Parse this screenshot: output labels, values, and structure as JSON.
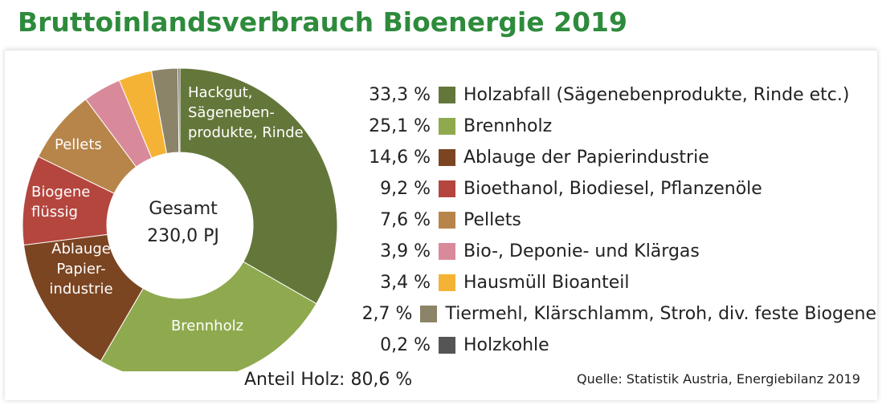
{
  "chart_data": {
    "type": "pie",
    "title": "Bruttoinlandsverbrauch Bioenergie 2019",
    "donut": true,
    "center_label": {
      "line1": "Gesamt",
      "line2": "230,0 PJ"
    },
    "slices": [
      {
        "name": "Holzabfall (Sägenebenprodukte, Rinde etc.)",
        "value": 33.3,
        "pct_label": "33,3 %",
        "color": "#64773a",
        "inner_label": [
          "Hackgut,",
          "Sägeneben-",
          "produkte, Rinde"
        ],
        "inner_label_color": "#ffffff"
      },
      {
        "name": "Brennholz",
        "value": 25.1,
        "pct_label": "25,1 %",
        "color": "#8faa4e",
        "inner_label": [
          "Brennholz"
        ],
        "inner_label_color": "#ffffff"
      },
      {
        "name": "Ablauge der Papierindustrie",
        "value": 14.6,
        "pct_label": "14,6 %",
        "color": "#7b4522",
        "inner_label": [
          "Ablauge",
          "Papier-",
          "industrie"
        ],
        "inner_label_color": "#ffffff"
      },
      {
        "name": "Bioethanol, Biodiesel, Pflanzenöle",
        "value": 9.2,
        "pct_label": "9,2 %",
        "color": "#b4463e",
        "inner_label": [
          "Biogene",
          "flüssig"
        ],
        "inner_label_color": "#ffffff"
      },
      {
        "name": "Pellets",
        "value": 7.6,
        "pct_label": "7,6 %",
        "color": "#b7854a",
        "inner_label": [
          "Pellets"
        ],
        "inner_label_color": "#ffffff"
      },
      {
        "name": "Bio-, Deponie- und Klärgas",
        "value": 3.9,
        "pct_label": "3,9 %",
        "color": "#d98a9a",
        "inner_label": [],
        "inner_label_color": "#ffffff"
      },
      {
        "name": "Hausmüll Bioanteil",
        "value": 3.4,
        "pct_label": "3,4 %",
        "color": "#f5b335",
        "inner_label": [],
        "inner_label_color": "#ffffff"
      },
      {
        "name": "Tiermehl, Klärschlamm, Stroh, div. feste Biogene",
        "value": 2.7,
        "pct_label": "2,7 %",
        "color": "#8c8468",
        "inner_label": [],
        "inner_label_color": "#ffffff"
      },
      {
        "name": "Holzkohle",
        "value": 0.2,
        "pct_label": "0,2 %",
        "color": "#555555",
        "inner_label": [],
        "inner_label_color": "#ffffff"
      }
    ],
    "legend_placement": "right"
  },
  "note_holz": "Anteil Holz: 80,6 %",
  "source": "Quelle: Statistik Austria, Energiebilanz 2019"
}
